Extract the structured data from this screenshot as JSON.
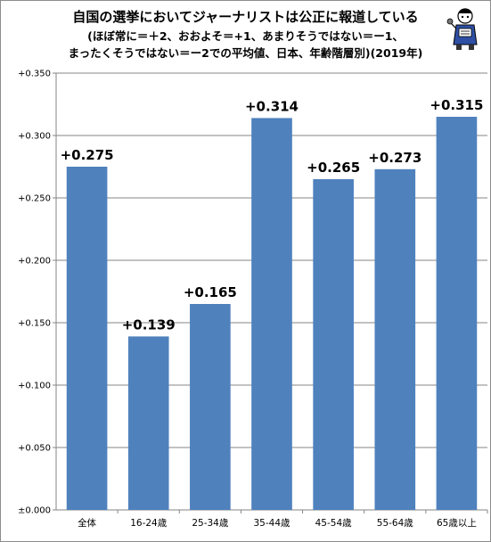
{
  "titles": {
    "line1": "自国の選挙においてジャーナリストは公正に報道している",
    "line2": "(ほぼ常に＝＋2、おおよそ＝+1、あまりそうではない＝ー1、",
    "line3": "まったくそうではない＝ー2での平均値、日本、年齢階層別)(2019年)"
  },
  "mascot": {
    "icon": "reporter-mascot-icon"
  },
  "colors": {
    "bar": "#4f81bd",
    "grid": "#868686",
    "axis": "#868686"
  },
  "chart_data": {
    "type": "bar",
    "categories": [
      "全体",
      "16-24歳",
      "25-34歳",
      "35-44歳",
      "45-54歳",
      "55-64歳",
      "65歳以上"
    ],
    "values": [
      0.275,
      0.139,
      0.165,
      0.314,
      0.265,
      0.273,
      0.315
    ],
    "data_labels": [
      "+0.275",
      "+0.139",
      "+0.165",
      "+0.314",
      "+0.265",
      "+0.273",
      "+0.315"
    ],
    "ylim": [
      0,
      0.35
    ],
    "y_ticks": [
      0,
      0.05,
      0.1,
      0.15,
      0.2,
      0.25,
      0.3,
      0.35
    ],
    "y_tick_labels": [
      "±0.000",
      "+0.050",
      "+0.100",
      "+0.150",
      "+0.200",
      "+0.250",
      "+0.300",
      "+0.350"
    ],
    "grid": true,
    "legend": "none"
  }
}
